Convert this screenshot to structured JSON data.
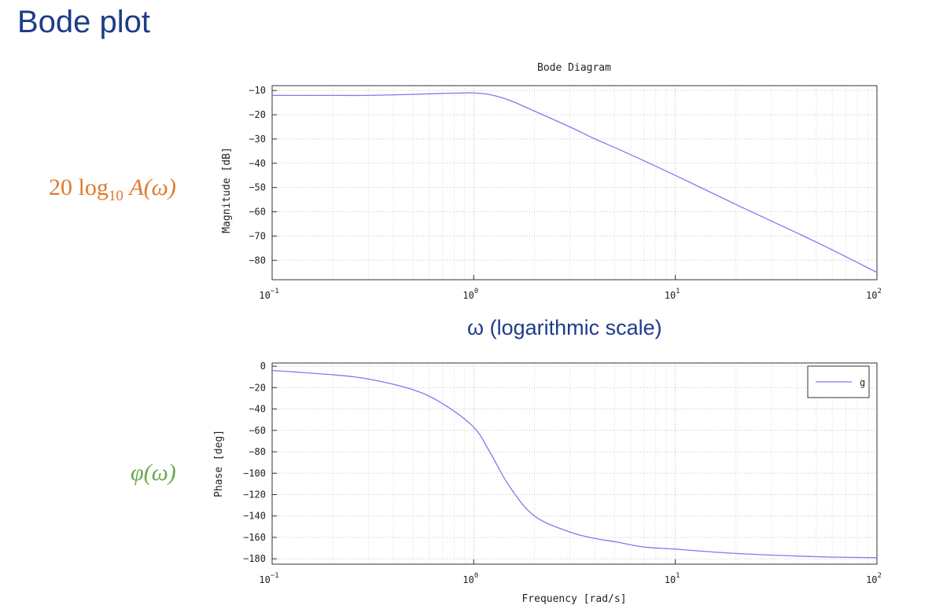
{
  "slide": {
    "title": "Bode plot",
    "magnitude_label_main": "20 log",
    "magnitude_label_sub": "10",
    "magnitude_label_tail": "A(ω)",
    "phase_label": "φ(ω)",
    "omega_label": "ω (logarithmic scale)",
    "colors": {
      "title": "#1f3c88",
      "magnitude_label": "#e07a2e",
      "phase_label": "#6aa84f",
      "curve": "#7b7bf0"
    }
  },
  "chart_data": [
    {
      "type": "line",
      "title": "Bode Diagram",
      "xlabel": "",
      "ylabel": "Magnitude [dB]",
      "xscale": "log",
      "xlim": [
        0.1,
        100
      ],
      "ylim": [
        -88,
        -8
      ],
      "xticks": [
        0.1,
        1,
        10,
        100
      ],
      "xtick_base": "10",
      "xtick_exponents": [
        "-1",
        "0",
        "1",
        "2"
      ],
      "yticks": [
        -10,
        -20,
        -30,
        -40,
        -50,
        -60,
        -70,
        -80
      ],
      "grid": true,
      "series": [
        {
          "x": [
            0.1,
            0.2,
            0.3,
            0.5,
            0.7,
            0.9,
            1.0,
            1.2,
            1.5,
            2,
            3,
            4,
            5,
            7,
            10,
            20,
            50,
            100
          ],
          "y": [
            -12,
            -12,
            -12,
            -11.6,
            -11.2,
            -11,
            -11,
            -11.7,
            -14,
            -18.5,
            -25,
            -30,
            -33.5,
            -39,
            -45,
            -57,
            -72.5,
            -85
          ]
        }
      ]
    },
    {
      "type": "line",
      "title": "",
      "xlabel": "Frequency [rad/s]",
      "ylabel": "Phase [deg]",
      "xscale": "log",
      "xlim": [
        0.1,
        100
      ],
      "ylim": [
        -185,
        3
      ],
      "xticks": [
        0.1,
        1,
        10,
        100
      ],
      "xtick_base": "10",
      "xtick_exponents": [
        "-1",
        "0",
        "1",
        "2"
      ],
      "yticks": [
        0,
        -20,
        -40,
        -60,
        -80,
        -100,
        -120,
        -140,
        -160,
        -180
      ],
      "grid": true,
      "legend": {
        "position": "top-right",
        "entries": [
          "g"
        ]
      },
      "series": [
        {
          "name": "g",
          "x": [
            0.1,
            0.2,
            0.3,
            0.5,
            0.7,
            1.0,
            1.2,
            1.5,
            2,
            3,
            4,
            5,
            7,
            10,
            20,
            50,
            100
          ],
          "y": [
            -4,
            -8,
            -12,
            -22,
            -35,
            -57,
            -80,
            -112,
            -140,
            -155,
            -161,
            -164,
            -169,
            -171,
            -175,
            -178,
            -179
          ]
        }
      ]
    }
  ]
}
